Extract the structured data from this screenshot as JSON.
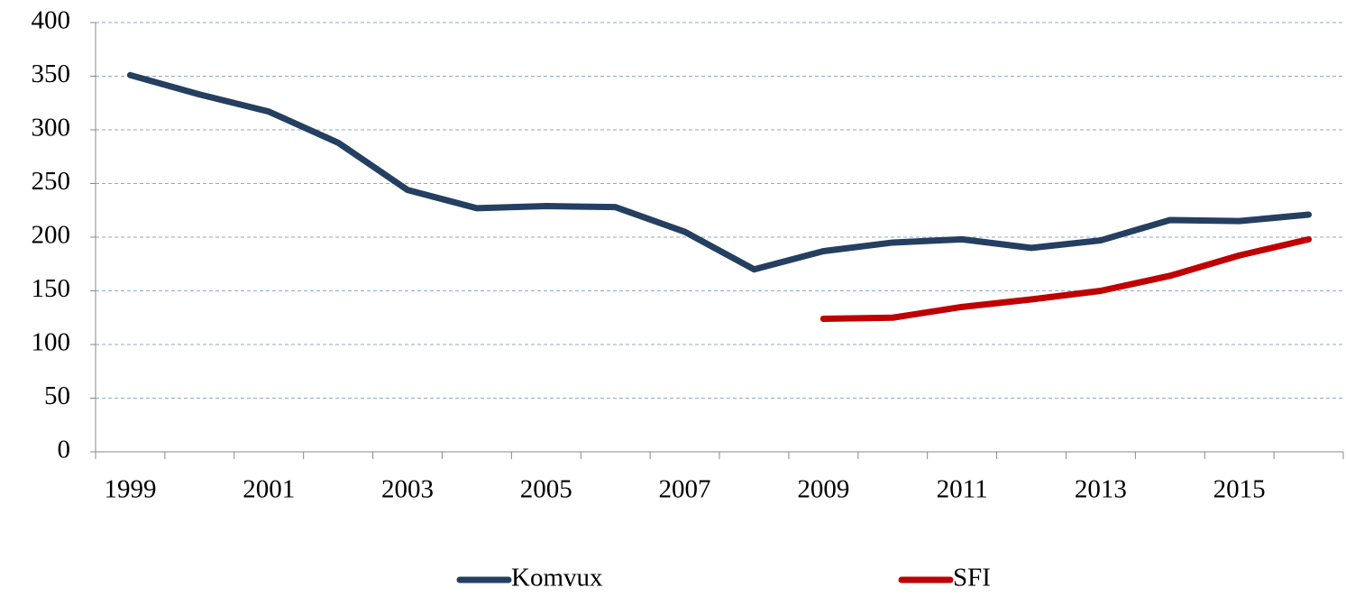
{
  "chart_data": {
    "type": "line",
    "categories": [
      "1999",
      null,
      "2001",
      null,
      "2003",
      null,
      "2005",
      null,
      "2007",
      null,
      "2009",
      null,
      "2011",
      null,
      "2013",
      null,
      "2015",
      null
    ],
    "series": [
      {
        "name": "Komvux",
        "color": "#243f60",
        "values": [
          351,
          333,
          317,
          288,
          244,
          227,
          229,
          228,
          205,
          170,
          187,
          195,
          198,
          190,
          197,
          216,
          215,
          221
        ]
      },
      {
        "name": "SFI",
        "color": "#c00000",
        "values": [
          null,
          null,
          null,
          null,
          null,
          null,
          null,
          null,
          null,
          null,
          124,
          125,
          135,
          142,
          150,
          164,
          183,
          198
        ]
      }
    ],
    "ylim": [
      0,
      400
    ],
    "yticks": [
      0,
      50,
      100,
      150,
      200,
      250,
      300,
      350,
      400
    ],
    "grid": true,
    "legend": "bottom"
  }
}
